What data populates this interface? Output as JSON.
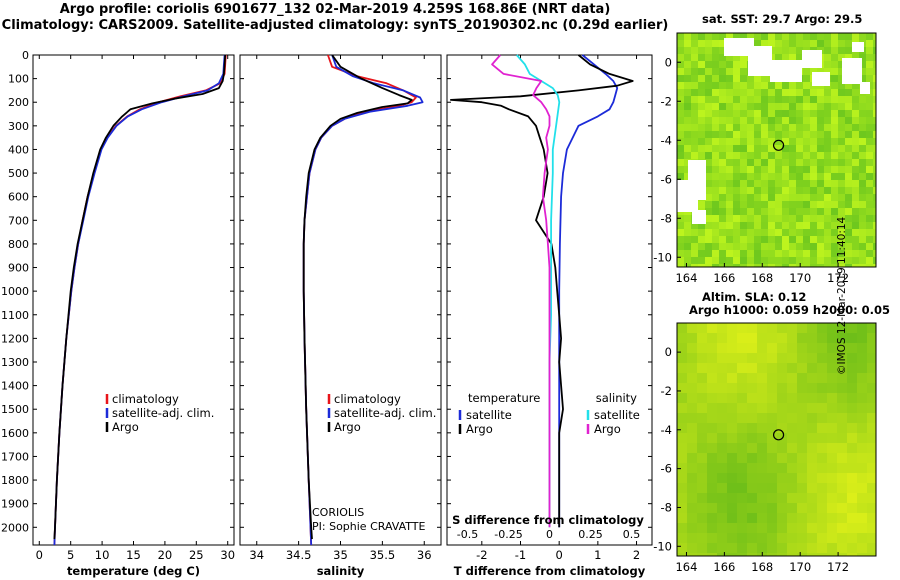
{
  "header": {
    "line1": "Argo profile: coriolis 6901677_132 02-Mar-2019 4.259S 168.86E (NRT data)",
    "line2": "Climatology: CARS2009. Satellite-adjusted climatology: synTS_20190302.nc (0.29d earlier)"
  },
  "colors": {
    "climatology": "#e8141a",
    "satellite": "#1c2bd8",
    "argo": "#000000",
    "t_sat": "#1c2bd8",
    "s_sat": "#22e0ea",
    "s_argo": "#e022d0"
  },
  "depth_axis": {
    "ticks": [
      0,
      100,
      200,
      300,
      400,
      500,
      600,
      700,
      800,
      900,
      1000,
      1100,
      1200,
      1300,
      1400,
      1500,
      1600,
      1700,
      1800,
      1900,
      2000
    ],
    "labels": [
      "0",
      "100",
      "200",
      "300",
      "400",
      "500",
      "600",
      "700",
      "800",
      "900",
      "1000",
      "1100",
      "1200",
      "1300",
      "1400",
      "1500",
      "1600",
      "1700",
      "1800",
      "1900",
      "2000"
    ],
    "range": [
      0,
      2075
    ]
  },
  "chart_data": [
    {
      "type": "line",
      "title": "",
      "xlabel": "temperature (deg C)",
      "ylabel": "depth",
      "xlim": [
        -1,
        31
      ],
      "ticks": [
        0,
        5,
        10,
        15,
        20,
        25,
        30
      ],
      "tick_labels": [
        "0",
        "5",
        "10",
        "15",
        "20",
        "25",
        "30"
      ],
      "legend": [
        "climatology",
        "satellite-adj. clim.",
        "Argo"
      ],
      "legend_position": "lower-center",
      "series": [
        {
          "name": "climatology",
          "color": "climatology",
          "depth": [
            0,
            40,
            80,
            120,
            150,
            175,
            200,
            230,
            260,
            300,
            350,
            400,
            500,
            600,
            700,
            800,
            900,
            1000,
            1200,
            1400,
            1600,
            1800,
            2000,
            2075
          ],
          "values": [
            29.7,
            29.6,
            29.5,
            28.8,
            26.5,
            22.5,
            19.0,
            16.0,
            14.0,
            12.2,
            10.8,
            9.8,
            8.7,
            7.7,
            6.9,
            6.2,
            5.6,
            5.1,
            4.3,
            3.7,
            3.2,
            2.8,
            2.5,
            2.4
          ]
        },
        {
          "name": "satellite-adj. clim.",
          "color": "satellite",
          "depth": [
            0,
            40,
            80,
            120,
            150,
            175,
            200,
            230,
            260,
            300,
            350,
            400,
            500,
            600,
            700,
            800,
            900,
            1000,
            1200,
            1400,
            1600,
            1800,
            2000,
            2075
          ],
          "values": [
            29.5,
            29.4,
            29.3,
            28.6,
            26.8,
            23.0,
            19.5,
            16.3,
            14.1,
            12.3,
            10.9,
            9.9,
            8.8,
            7.8,
            7.0,
            6.2,
            5.6,
            5.1,
            4.3,
            3.7,
            3.2,
            2.8,
            2.5,
            2.4
          ]
        },
        {
          "name": "Argo",
          "color": "argo",
          "depth": [
            0,
            40,
            80,
            110,
            140,
            165,
            185,
            205,
            230,
            260,
            300,
            350,
            400,
            500,
            600,
            700,
            800,
            900,
            1000,
            1200,
            1400,
            1600,
            1800,
            2000,
            2050
          ],
          "values": [
            29.6,
            29.5,
            29.4,
            29.2,
            28.6,
            26.0,
            21.5,
            18.0,
            14.5,
            13.2,
            11.8,
            10.6,
            9.7,
            8.6,
            7.7,
            6.9,
            6.1,
            5.5,
            5.0,
            4.3,
            3.7,
            3.2,
            2.8,
            2.5,
            2.4
          ]
        }
      ]
    },
    {
      "type": "line",
      "title": "",
      "xlabel": "salinity",
      "ylabel": "depth",
      "xlim": [
        33.8,
        36.2
      ],
      "ticks": [
        34,
        34.5,
        35,
        35.5,
        36
      ],
      "tick_labels": [
        "34",
        "34.5",
        "35",
        "35.5",
        "36"
      ],
      "legend": [
        "climatology",
        "satellite-adj. clim.",
        "Argo"
      ],
      "legend_position": "lower-center",
      "annotation": [
        "CORIOLIS",
        "PI: Sophie CRAVATTE"
      ],
      "series": [
        {
          "name": "climatology",
          "color": "climatology",
          "depth": [
            0,
            50,
            90,
            120,
            150,
            180,
            200,
            215,
            240,
            270,
            300,
            350,
            400,
            500,
            600,
            700,
            800,
            900,
            1000,
            1200,
            1500,
            1800,
            2075
          ],
          "values": [
            34.85,
            34.9,
            35.2,
            35.55,
            35.75,
            35.9,
            35.85,
            35.7,
            35.3,
            35.05,
            34.9,
            34.77,
            34.7,
            34.63,
            34.6,
            34.57,
            34.56,
            34.56,
            34.56,
            34.57,
            34.59,
            34.62,
            34.65
          ]
        },
        {
          "name": "satellite-adj. clim.",
          "color": "satellite",
          "depth": [
            0,
            50,
            90,
            120,
            150,
            180,
            200,
            215,
            240,
            270,
            300,
            350,
            400,
            500,
            600,
            700,
            800,
            900,
            1000,
            1200,
            1500,
            1800,
            2075
          ],
          "values": [
            34.9,
            34.95,
            35.15,
            35.4,
            35.75,
            35.95,
            35.98,
            35.8,
            35.35,
            35.05,
            34.9,
            34.77,
            34.7,
            34.63,
            34.6,
            34.57,
            34.56,
            34.56,
            34.56,
            34.57,
            34.59,
            34.62,
            34.65
          ]
        },
        {
          "name": "Argo",
          "color": "argo",
          "depth": [
            0,
            50,
            100,
            140,
            170,
            190,
            205,
            220,
            245,
            270,
            300,
            350,
            400,
            500,
            600,
            700,
            800,
            900,
            1000,
            1200,
            1500,
            1800,
            2000,
            2050
          ],
          "values": [
            34.9,
            35.0,
            35.25,
            35.5,
            35.7,
            35.85,
            35.8,
            35.5,
            35.2,
            35.0,
            34.88,
            34.76,
            34.69,
            34.62,
            34.59,
            34.57,
            34.56,
            34.56,
            34.56,
            34.57,
            34.59,
            34.62,
            34.65,
            34.66
          ]
        }
      ]
    },
    {
      "type": "line",
      "title": "",
      "xlabel": "T difference from climatology",
      "ylabel": "depth",
      "xlim": [
        -2.9,
        2.4
      ],
      "ticks": [
        -2,
        -1,
        0,
        1,
        2
      ],
      "tick_labels": [
        "-2",
        "-1",
        "0",
        "1",
        "2"
      ],
      "top_axis": {
        "label": "S difference from climatology",
        "ticks": [
          -0.5,
          -0.25,
          0,
          0.25,
          0.5
        ],
        "tick_labels": [
          "-0.5",
          "-0.25",
          "0",
          "0.25",
          "0.5"
        ]
      },
      "legend_left": {
        "title": "temperature",
        "entries": [
          "satellite",
          "Argo"
        ]
      },
      "legend_right": {
        "title": "salinity",
        "entries": [
          "satellite",
          "Argo"
        ]
      },
      "series": [
        {
          "name": "temperature satellite",
          "color": "t_sat",
          "depth": [
            0,
            40,
            80,
            110,
            140,
            170,
            200,
            230,
            260,
            300,
            400,
            500,
            600,
            800,
            1000,
            1200,
            1400,
            1600,
            1800,
            2000
          ],
          "values": [
            0.6,
            0.9,
            1.2,
            1.4,
            1.5,
            1.45,
            1.4,
            1.3,
            1.0,
            0.5,
            0.2,
            0.1,
            0.05,
            0.02,
            0.0,
            0.0,
            0.0,
            0.0,
            0.0,
            0.0
          ]
        },
        {
          "name": "temperature Argo",
          "color": "argo",
          "depth": [
            0,
            40,
            80,
            110,
            130,
            150,
            175,
            190,
            200,
            215,
            230,
            260,
            300,
            350,
            400,
            500,
            600,
            700,
            800,
            900,
            1000,
            1100,
            1200,
            1300,
            1400,
            1500,
            1600,
            1800,
            2000
          ],
          "values": [
            0.5,
            0.8,
            1.3,
            1.9,
            1.5,
            0.5,
            -1.0,
            -2.8,
            -2.0,
            -1.5,
            -1.3,
            -0.8,
            -0.6,
            -0.5,
            -0.4,
            -0.3,
            -0.4,
            -0.6,
            -0.2,
            -0.1,
            -0.05,
            0.0,
            0.05,
            0.0,
            0.05,
            0.1,
            0.0,
            0.0,
            0.0
          ]
        },
        {
          "name": "salinity satellite",
          "color": "s_sat",
          "depth": [
            0,
            40,
            80,
            110,
            140,
            170,
            200,
            250,
            300,
            400,
            500,
            700,
            900,
            1100,
            1300,
            1500,
            1700,
            1900,
            2000
          ],
          "values": [
            -0.2,
            -0.15,
            -0.12,
            -0.05,
            0.02,
            0.05,
            0.06,
            0.05,
            0.04,
            0.02,
            0.02,
            0.01,
            0.01,
            0.01,
            0.0,
            0.0,
            0.0,
            0.0,
            0.0
          ]
        },
        {
          "name": "salinity Argo",
          "color": "s_argo",
          "depth": [
            0,
            40,
            80,
            110,
            140,
            170,
            200,
            230,
            260,
            300,
            350,
            400,
            450,
            500,
            600,
            700,
            800,
            900,
            1000,
            1200,
            1400,
            1500,
            1600,
            1800,
            2000
          ],
          "values": [
            -0.3,
            -0.35,
            -0.28,
            -0.05,
            -0.08,
            -0.1,
            -0.05,
            -0.02,
            0.0,
            0.0,
            -0.02,
            -0.01,
            -0.02,
            -0.03,
            -0.04,
            -0.02,
            -0.01,
            0.0,
            0.0,
            0.0,
            0.0,
            0.0,
            0.0,
            0.0,
            0.0
          ]
        }
      ]
    },
    {
      "type": "heatmap",
      "title": "sat. SST: 29.7 Argo: 29.5",
      "xlim": [
        163.5,
        174
      ],
      "ylim": [
        -10.5,
        1.5
      ],
      "xticks": [
        164,
        166,
        168,
        170,
        172
      ],
      "xtick_labels": [
        "164",
        "166",
        "168",
        "170",
        "172"
      ],
      "yticks": [
        0,
        -2,
        -4,
        -6,
        -8,
        -10
      ],
      "ytick_labels": [
        "0",
        "-2",
        "-4",
        "-6",
        "-8",
        "-10"
      ],
      "marker": {
        "lon": 168.86,
        "lat": -4.259
      },
      "field": "SST",
      "note": "white patches = missing data"
    },
    {
      "type": "heatmap",
      "title": "Altim. SLA: 0.12",
      "subtitle": "Argo h1000: 0.059 h2000: 0.05",
      "xlim": [
        163.5,
        174
      ],
      "ylim": [
        -10.5,
        1.5
      ],
      "xticks": [
        164,
        166,
        168,
        170,
        172
      ],
      "xtick_labels": [
        "164",
        "166",
        "168",
        "170",
        "172"
      ],
      "yticks": [
        0,
        -2,
        -4,
        -6,
        -8,
        -10
      ],
      "ytick_labels": [
        "0",
        "-2",
        "-4",
        "-6",
        "-8",
        "-10"
      ],
      "marker": {
        "lon": 168.86,
        "lat": -4.259
      },
      "field": "SLA"
    }
  ],
  "footer": {
    "stamp": "©IMOS 12-Mar-2019 11:40:14"
  }
}
